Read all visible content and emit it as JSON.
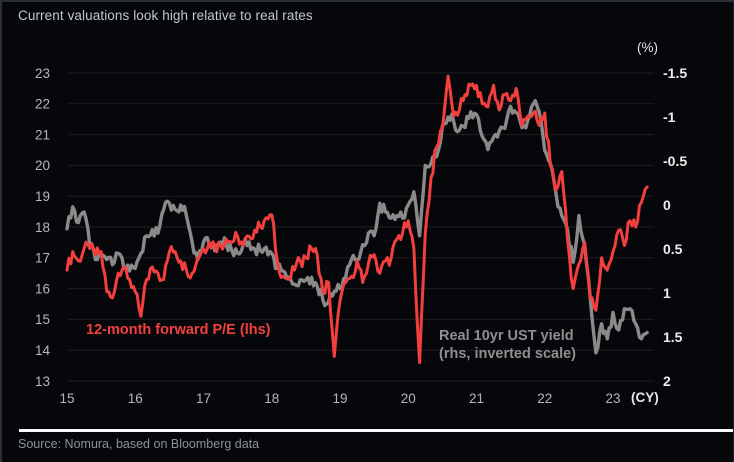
{
  "header": {
    "title": "Current valuations look high relative to real rates"
  },
  "source": {
    "text": "Source: Nomura, based on Bloomberg data"
  },
  "chart_data": {
    "type": "line",
    "title": "Current valuations look high relative to real rates",
    "x_label": "(CY)",
    "x_ticks": [
      "15",
      "16",
      "17",
      "18",
      "19",
      "20",
      "21",
      "22",
      "23"
    ],
    "x_tick_years": [
      2015,
      2016,
      2017,
      2018,
      2019,
      2020,
      2021,
      2022,
      2023
    ],
    "frequency": "monthly, Jan 2015 - Jul 2023",
    "grid": "horizontal gridlines at every left-axis integer",
    "legend_position": "labels inside plot area",
    "left_axis": {
      "ticks": [
        23,
        22,
        21,
        20,
        19,
        18,
        17,
        16,
        15,
        14,
        13
      ],
      "range": [
        13,
        23
      ]
    },
    "right_axis": {
      "unit": "(%)",
      "ticks": [
        "-1.5",
        "-1",
        "-0.5",
        "0",
        "0.5",
        "1",
        "1.5",
        "2"
      ],
      "tick_values": [
        -1.5,
        -1,
        -0.5,
        0,
        0.5,
        1,
        1.5,
        2
      ],
      "range": [
        -1.5,
        2
      ],
      "inverted": true
    },
    "annotations": {
      "lhs_label": "12-month forward P/E (lhs)",
      "rhs_label": "Real 10yr UST yield\n(rhs, inverted scale)"
    },
    "series": [
      {
        "name": "12-month forward P/E (lhs)",
        "axis": "left",
        "color": "#f43f3f",
        "start_year": 2015,
        "step_years": 0.0833333,
        "values": [
          16.6,
          17.2,
          16.9,
          17.3,
          17.3,
          17.1,
          17.2,
          15.9,
          15.7,
          16.5,
          16.7,
          16.3,
          15.9,
          15.1,
          16.3,
          16.7,
          16.5,
          16.3,
          17.2,
          17.2,
          16.9,
          16.6,
          16.5,
          17.0,
          17.3,
          17.5,
          17.4,
          17.4,
          17.6,
          17.5,
          17.7,
          17.4,
          17.7,
          17.9,
          18.0,
          18.3,
          18.4,
          16.9,
          16.4,
          16.3,
          16.6,
          16.9,
          17.0,
          17.3,
          17.1,
          15.9,
          16.2,
          13.8,
          15.6,
          16.2,
          16.4,
          16.9,
          16.2,
          16.8,
          17.1,
          16.5,
          16.9,
          17.0,
          17.6,
          17.8,
          18.2,
          17.3,
          13.6,
          17.8,
          19.6,
          20.6,
          21.2,
          22.9,
          21.6,
          21.8,
          22.3,
          22.6,
          22.6,
          22.0,
          21.9,
          22.6,
          21.8,
          22.3,
          22.1,
          22.5,
          21.3,
          21.6,
          21.7,
          21.3,
          21.7,
          20.0,
          19.2,
          19.8,
          17.6,
          16.0,
          16.8,
          17.5,
          15.7,
          15.3,
          17.0,
          16.6,
          17.2,
          17.9,
          17.4,
          18.2,
          18.0,
          18.8,
          19.3
        ]
      },
      {
        "name": "Real 10yr UST yield (rhs, inverted scale)",
        "axis": "right",
        "color": "#8a8a8a",
        "start_year": 2015,
        "step_years": 0.0833333,
        "values": [
          0.27,
          0.02,
          0.2,
          0.08,
          0.45,
          0.62,
          0.58,
          0.62,
          0.68,
          0.55,
          0.72,
          0.75,
          0.72,
          0.55,
          0.35,
          0.28,
          0.32,
          0.05,
          -0.02,
          0.05,
          0.0,
          0.12,
          0.42,
          0.62,
          0.42,
          0.45,
          0.52,
          0.42,
          0.45,
          0.52,
          0.55,
          0.45,
          0.42,
          0.5,
          0.52,
          0.48,
          0.55,
          0.72,
          0.75,
          0.82,
          0.9,
          0.85,
          0.85,
          0.82,
          0.92,
          1.08,
          1.1,
          0.98,
          0.95,
          0.82,
          0.62,
          0.62,
          0.45,
          0.32,
          0.35,
          -0.02,
          0.08,
          0.15,
          0.12,
          0.15,
          0.0,
          -0.15,
          0.35,
          -0.45,
          -0.47,
          -0.55,
          -0.9,
          -1.0,
          -0.95,
          -0.85,
          -0.88,
          -1.06,
          -1.03,
          -0.78,
          -0.63,
          -0.77,
          -0.84,
          -0.87,
          -1.12,
          -1.05,
          -0.88,
          -0.96,
          -1.15,
          -1.06,
          -0.62,
          -0.47,
          -0.12,
          0.12,
          0.28,
          0.65,
          0.12,
          0.45,
          1.05,
          1.68,
          1.35,
          1.52,
          1.22,
          1.42,
          1.18,
          1.18,
          1.35,
          1.52,
          1.45
        ]
      }
    ],
    "colors": {
      "background": "#06070a",
      "grid": "#1f1f1f",
      "left_axis_text": "#b4b7ba",
      "right_axis_text": "#ececec",
      "pe_line": "#f43f3f",
      "yield_line": "#8a8a8a"
    }
  }
}
